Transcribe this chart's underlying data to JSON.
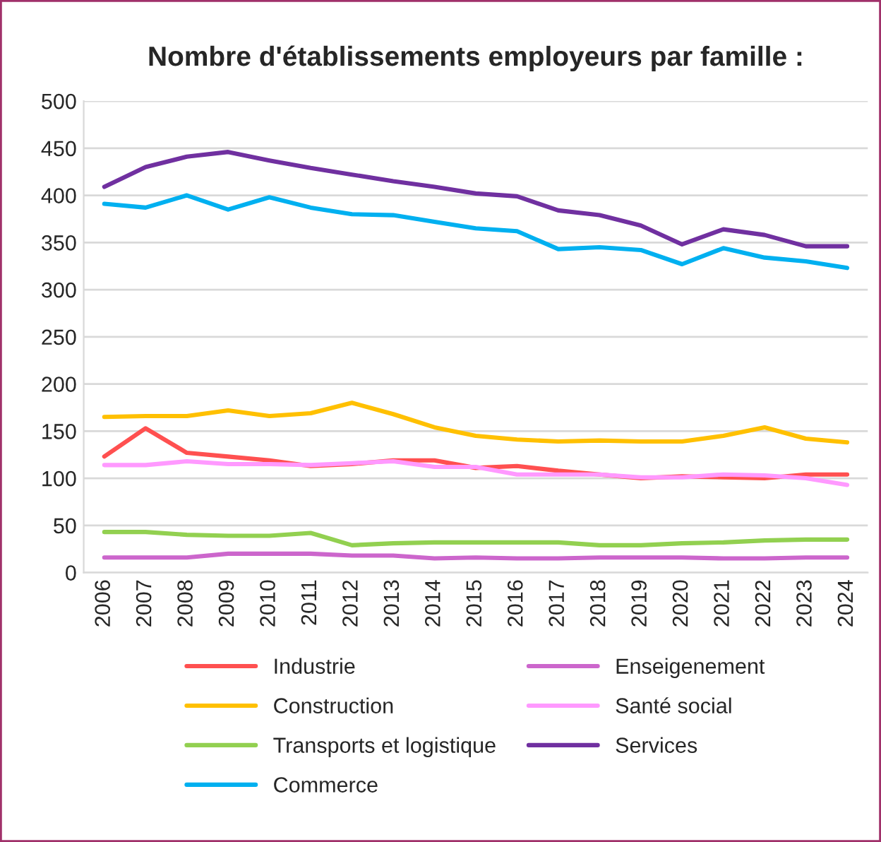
{
  "chart_data": {
    "type": "line",
    "title": "Nombre d'établissements employeurs par famille :",
    "categories": [
      "2006",
      "2007",
      "2008",
      "2009",
      "2010",
      "2011",
      "2012",
      "2013",
      "2014",
      "2015",
      "2016",
      "2017",
      "2018",
      "2019",
      "2020",
      "2021",
      "2022",
      "2023",
      "2024"
    ],
    "series": [
      {
        "name": "Industrie",
        "color": "#ff5050",
        "values": [
          123,
          153,
          127,
          123,
          119,
          113,
          115,
          119,
          119,
          111,
          113,
          108,
          104,
          100,
          102,
          101,
          100,
          104,
          104
        ]
      },
      {
        "name": "Construction",
        "color": "#ffc000",
        "values": [
          165,
          166,
          166,
          172,
          166,
          169,
          180,
          168,
          154,
          145,
          141,
          139,
          140,
          139,
          139,
          145,
          154,
          142,
          138
        ]
      },
      {
        "name": "Transports et logistique",
        "color": "#92d050",
        "values": [
          43,
          43,
          40,
          39,
          39,
          42,
          29,
          31,
          32,
          32,
          32,
          32,
          29,
          29,
          31,
          32,
          34,
          35,
          35
        ]
      },
      {
        "name": "Commerce",
        "color": "#00b0f0",
        "values": [
          391,
          387,
          400,
          385,
          398,
          387,
          380,
          379,
          372,
          365,
          362,
          343,
          345,
          342,
          327,
          344,
          334,
          330,
          323
        ]
      },
      {
        "name": "Enseigenement",
        "color": "#cc66cc",
        "values": [
          16,
          16,
          16,
          20,
          20,
          20,
          18,
          18,
          15,
          16,
          15,
          15,
          16,
          16,
          16,
          15,
          15,
          16,
          16
        ]
      },
      {
        "name": "Santé social",
        "color": "#ff99ff",
        "values": [
          114,
          114,
          118,
          115,
          115,
          114,
          116,
          118,
          112,
          112,
          104,
          104,
          104,
          101,
          101,
          104,
          103,
          100,
          93
        ]
      },
      {
        "name": "Services",
        "color": "#7030a0",
        "values": [
          409,
          430,
          441,
          446,
          437,
          429,
          422,
          415,
          409,
          402,
          399,
          384,
          379,
          368,
          348,
          364,
          358,
          346,
          346
        ]
      }
    ],
    "ylim": [
      0,
      500
    ],
    "yticks": [
      0,
      50,
      100,
      150,
      200,
      250,
      300,
      350,
      400,
      450,
      500
    ],
    "grid": "y",
    "legend": "bottom",
    "marker": "none",
    "line_style": "solid"
  }
}
